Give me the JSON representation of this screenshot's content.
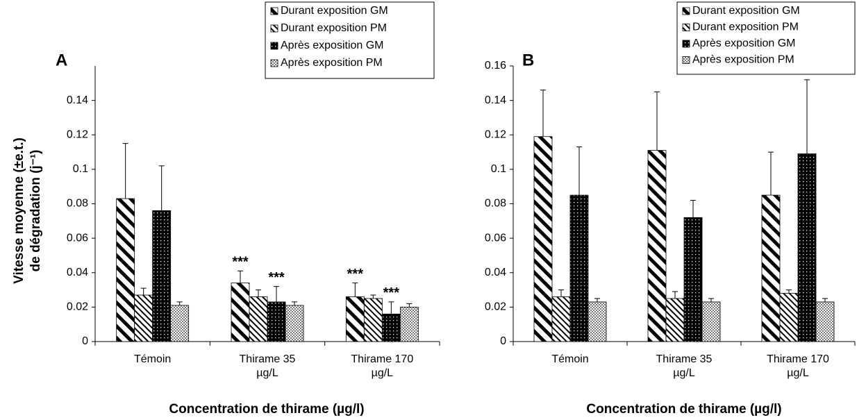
{
  "chart_data": [
    {
      "type": "bar",
      "panel": "A",
      "ylabel": [
        "Vitesse moyenne (±e.t.)",
        "de dégradation (j⁻¹)"
      ],
      "xlabel": "Concentration de thirame (µg/l)",
      "categories": [
        "Témoin",
        "Thirame 35 µg/L",
        "Thirame 170 µg/L"
      ],
      "series": [
        {
          "name": "Durant exposition GM",
          "color": "#000000",
          "pattern": "wide-diagonal",
          "values": [
            0.083,
            0.034,
            0.026
          ],
          "errors": [
            0.032,
            0.007,
            0.008
          ]
        },
        {
          "name": "Durant exposition PM",
          "color": "#000000",
          "pattern": "fine-diagonal",
          "values": [
            0.027,
            0.026,
            0.025
          ],
          "errors": [
            0.004,
            0.004,
            0.002
          ]
        },
        {
          "name": "Après exposition GM",
          "color": "#000000",
          "pattern": "dots",
          "values": [
            0.076,
            0.023,
            0.016
          ],
          "errors": [
            0.026,
            0.009,
            0.007
          ]
        },
        {
          "name": "Après exposition PM",
          "color": "#000000",
          "pattern": "checker",
          "values": [
            0.021,
            0.021,
            0.02
          ],
          "errors": [
            0.002,
            0.002,
            0.002
          ]
        }
      ],
      "annotations": [
        "***",
        "***",
        "***",
        "***"
      ],
      "ylim": [
        0,
        0.16
      ],
      "yticks": [
        0,
        0.02,
        0.04,
        0.06,
        0.08,
        0.1,
        0.12,
        0.14
      ],
      "legend": "top-right"
    },
    {
      "type": "bar",
      "panel": "B",
      "xlabel": "Concentration de thirame (µg/l)",
      "categories": [
        "Témoin",
        "Thirame 35 µg/L",
        "Thirame 170 µg/L"
      ],
      "series": [
        {
          "name": "Durant exposition GM",
          "color": "#000000",
          "pattern": "wide-diagonal",
          "values": [
            0.119,
            0.111,
            0.085
          ],
          "errors": [
            0.027,
            0.034,
            0.025
          ]
        },
        {
          "name": "Durant exposition PM",
          "color": "#000000",
          "pattern": "fine-diagonal",
          "values": [
            0.026,
            0.025,
            0.028
          ],
          "errors": [
            0.004,
            0.004,
            0.002
          ]
        },
        {
          "name": "Après exposition GM",
          "color": "#000000",
          "pattern": "dots",
          "values": [
            0.085,
            0.072,
            0.109
          ],
          "errors": [
            0.028,
            0.01,
            0.043
          ]
        },
        {
          "name": "Après exposition PM",
          "color": "#000000",
          "pattern": "checker",
          "values": [
            0.023,
            0.023,
            0.023
          ],
          "errors": [
            0.002,
            0.002,
            0.002
          ]
        }
      ],
      "ylim": [
        0,
        0.16
      ],
      "yticks": [
        0,
        0.02,
        0.04,
        0.06,
        0.08,
        0.1,
        0.12,
        0.14,
        0.16
      ],
      "legend": "top-right"
    }
  ]
}
